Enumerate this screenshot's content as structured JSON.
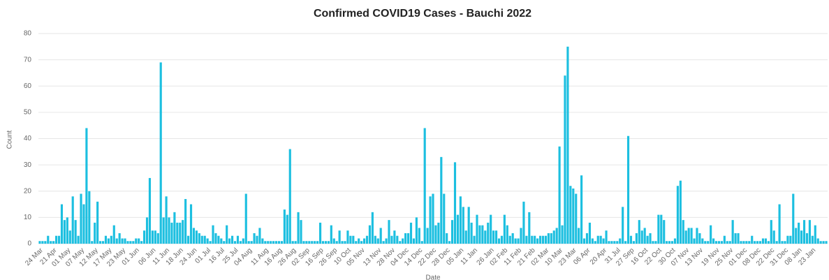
{
  "chart_data": {
    "type": "bar",
    "title": "Confirmed COVID19 Cases - Bauchi 2022",
    "x_label": "Date",
    "y_label": "Count",
    "color": "#1cbfe0",
    "ylim": [
      0,
      80
    ],
    "yticks": [
      0,
      10,
      20,
      30,
      40,
      50,
      60,
      70,
      80
    ],
    "grid": true,
    "categories": [
      "24 Mar",
      null,
      null,
      null,
      null,
      "21 Apr",
      null,
      null,
      null,
      null,
      "01 May",
      null,
      null,
      null,
      null,
      "07 May",
      null,
      null,
      null,
      null,
      "12 May",
      null,
      null,
      null,
      null,
      "17 May",
      null,
      null,
      null,
      null,
      "23 May",
      null,
      null,
      null,
      null,
      "01 Jun",
      null,
      null,
      null,
      null,
      null,
      "06 Jun",
      null,
      null,
      null,
      null,
      "11 Jun",
      null,
      null,
      null,
      null,
      "18 Jun",
      null,
      null,
      null,
      null,
      "24 Jun",
      null,
      null,
      null,
      null,
      "01 Jul",
      null,
      null,
      null,
      null,
      "16 Jul",
      null,
      null,
      null,
      null,
      "25 Jul",
      null,
      null,
      null,
      null,
      "04 Aug",
      null,
      null,
      null,
      null,
      null,
      "11 Aug",
      null,
      null,
      null,
      null,
      "16 Aug",
      null,
      null,
      null,
      null,
      "26 Aug",
      null,
      null,
      null,
      null,
      "02 Sep",
      null,
      null,
      null,
      null,
      "16 Sep",
      null,
      null,
      null,
      null,
      "26 Sep",
      null,
      null,
      null,
      null,
      "10 Oct",
      null,
      null,
      null,
      null,
      "05 Nov",
      null,
      null,
      null,
      null,
      null,
      "13 Nov",
      null,
      null,
      null,
      null,
      "28 Nov",
      null,
      null,
      null,
      null,
      "04 Dec",
      null,
      null,
      null,
      null,
      "14 Dec",
      null,
      null,
      null,
      null,
      "22 Dec",
      null,
      null,
      null,
      null,
      "28 Dec",
      null,
      null,
      null,
      null,
      "05 Jan",
      null,
      null,
      null,
      null,
      "11 Jan",
      null,
      null,
      null,
      null,
      null,
      "26 Jan",
      null,
      null,
      null,
      null,
      "02 Feb",
      null,
      null,
      null,
      null,
      "11 Feb",
      null,
      null,
      null,
      null,
      "21 Feb",
      null,
      null,
      null,
      null,
      "02 Mar",
      null,
      null,
      null,
      null,
      "10 Mar",
      null,
      null,
      null,
      null,
      "23 Mar",
      null,
      null,
      null,
      null,
      "06 Apr",
      null,
      null,
      null,
      null,
      null,
      "20 Apr",
      null,
      null,
      null,
      null,
      "31 Jul",
      null,
      null,
      null,
      null,
      "27 Sep",
      null,
      null,
      null,
      null,
      "16 Oct",
      null,
      null,
      null,
      null,
      "22 Oct",
      null,
      null,
      null,
      null,
      "30 Oct",
      null,
      null,
      null,
      null,
      "07 Nov",
      null,
      null,
      null,
      null,
      "13 Nov",
      null,
      null,
      null,
      null,
      null,
      "19 Nov",
      null,
      null,
      null,
      null,
      "25 Nov",
      null,
      null,
      null,
      null,
      "01 Dec",
      null,
      null,
      null,
      null,
      "08 Dec",
      null,
      null,
      null,
      null,
      "22 Dec",
      null,
      null,
      null,
      null,
      "31 Dec",
      null,
      null,
      null,
      null,
      "08 Jan",
      null,
      null,
      null,
      null,
      "23 Jan",
      null,
      null,
      null,
      null,
      null
    ],
    "values": [
      1,
      1,
      1,
      3,
      1,
      1,
      3,
      3,
      15,
      9,
      10,
      5,
      18,
      9,
      3,
      19,
      15,
      44,
      20,
      1,
      8,
      16,
      1,
      1,
      3,
      2,
      3,
      7,
      2,
      4,
      2,
      2,
      1,
      1,
      1,
      2,
      2,
      1,
      5,
      10,
      25,
      5,
      5,
      4,
      69,
      10,
      18,
      10,
      8,
      12,
      8,
      8,
      9,
      17,
      3,
      15,
      6,
      5,
      4,
      3,
      3,
      2,
      1,
      7,
      4,
      3,
      2,
      1,
      7,
      2,
      3,
      1,
      3,
      1,
      2,
      19,
      1,
      1,
      4,
      3,
      6,
      2,
      1,
      1,
      1,
      1,
      1,
      1,
      1,
      13,
      11,
      36,
      1,
      1,
      12,
      9,
      1,
      1,
      1,
      1,
      1,
      1,
      8,
      1,
      1,
      1,
      7,
      2,
      1,
      5,
      1,
      1,
      5,
      3,
      3,
      1,
      2,
      1,
      2,
      3,
      7,
      12,
      3,
      2,
      6,
      1,
      2,
      9,
      3,
      5,
      3,
      1,
      2,
      4,
      4,
      8,
      2,
      10,
      6,
      1,
      44,
      6,
      18,
      19,
      7,
      8,
      33,
      19,
      4,
      1,
      9,
      31,
      11,
      18,
      14,
      5,
      14,
      8,
      3,
      11,
      7,
      7,
      5,
      8,
      11,
      5,
      5,
      2,
      3,
      11,
      7,
      3,
      4,
      2,
      2,
      6,
      16,
      3,
      12,
      3,
      3,
      2,
      3,
      3,
      3,
      4,
      4,
      5,
      6,
      37,
      7,
      64,
      75,
      22,
      21,
      19,
      6,
      26,
      2,
      4,
      8,
      2,
      1,
      3,
      3,
      2,
      5,
      1,
      1,
      1,
      1,
      2,
      14,
      1,
      41,
      3,
      1,
      4,
      9,
      5,
      6,
      3,
      4,
      1,
      1,
      11,
      11,
      9,
      1,
      1,
      1,
      2,
      22,
      24,
      9,
      5,
      6,
      6,
      2,
      6,
      4,
      2,
      1,
      1,
      7,
      2,
      1,
      1,
      1,
      3,
      1,
      1,
      9,
      4,
      4,
      1,
      1,
      1,
      1,
      3,
      1,
      1,
      1,
      2,
      2,
      1,
      9,
      5,
      1,
      15,
      1,
      1,
      3,
      3,
      19,
      6,
      8,
      5,
      9,
      4,
      9,
      3,
      7,
      2,
      1,
      1,
      1
    ]
  }
}
